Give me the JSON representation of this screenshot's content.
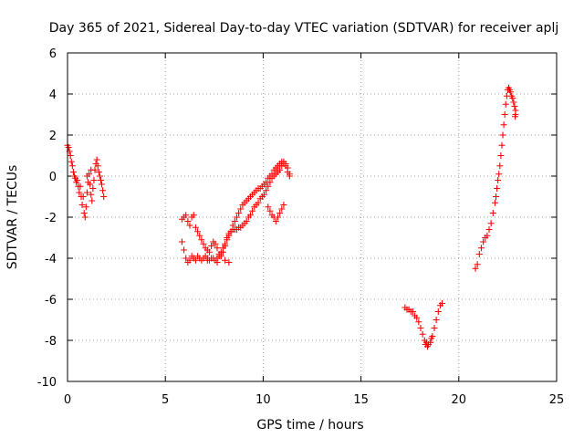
{
  "chart_data": {
    "type": "scatter",
    "title": "Day 365 of 2021, Sidereal Day-to-day VTEC variation (SDTVAR) for receiver aplj",
    "xlabel": "GPS time / hours",
    "ylabel": "SDTVAR / TECUs",
    "xlim": [
      0,
      25
    ],
    "ylim": [
      -10,
      6
    ],
    "xticks": [
      0,
      5,
      10,
      15,
      20,
      25
    ],
    "yticks": [
      -10,
      -8,
      -6,
      -4,
      -2,
      0,
      2,
      4,
      6
    ],
    "grid": true,
    "marker": "plus",
    "color": "#ff0000",
    "points": [
      [
        0.0,
        1.5
      ],
      [
        0.05,
        1.4
      ],
      [
        0.1,
        1.2
      ],
      [
        0.15,
        1.0
      ],
      [
        0.2,
        0.7
      ],
      [
        0.25,
        0.5
      ],
      [
        0.3,
        0.2
      ],
      [
        0.35,
        0.0
      ],
      [
        0.4,
        -0.1
      ],
      [
        0.45,
        -0.3
      ],
      [
        0.5,
        -0.2
      ],
      [
        0.55,
        -0.5
      ],
      [
        0.6,
        -0.8
      ],
      [
        0.65,
        -0.5
      ],
      [
        0.7,
        -1.0
      ],
      [
        0.75,
        -1.4
      ],
      [
        0.8,
        -1.0
      ],
      [
        0.85,
        -1.8
      ],
      [
        0.9,
        -2.0
      ],
      [
        0.95,
        -1.5
      ],
      [
        1.0,
        -0.8
      ],
      [
        1.05,
        -0.3
      ],
      [
        1.1,
        0.1
      ],
      [
        1.15,
        -0.4
      ],
      [
        1.2,
        -0.9
      ],
      [
        1.25,
        -1.2
      ],
      [
        1.3,
        -0.6
      ],
      [
        1.35,
        -0.2
      ],
      [
        1.4,
        0.3
      ],
      [
        1.45,
        0.6
      ],
      [
        1.5,
        0.8
      ],
      [
        1.55,
        0.5
      ],
      [
        1.6,
        0.2
      ],
      [
        1.65,
        0.0
      ],
      [
        1.7,
        -0.2
      ],
      [
        1.75,
        -0.4
      ],
      [
        1.8,
        -0.7
      ],
      [
        1.85,
        -1.0
      ],
      [
        1.2,
        0.3
      ],
      [
        1.0,
        0.0
      ],
      [
        5.85,
        -2.1
      ],
      [
        5.95,
        -2.0
      ],
      [
        6.05,
        -1.9
      ],
      [
        6.15,
        -2.2
      ],
      [
        6.25,
        -2.4
      ],
      [
        6.35,
        -2.0
      ],
      [
        6.45,
        -1.9
      ],
      [
        6.55,
        -2.5
      ],
      [
        6.65,
        -2.7
      ],
      [
        6.75,
        -2.9
      ],
      [
        6.85,
        -3.1
      ],
      [
        6.95,
        -3.3
      ],
      [
        7.05,
        -3.5
      ],
      [
        7.15,
        -3.6
      ],
      [
        7.25,
        -3.7
      ],
      [
        7.35,
        -3.4
      ],
      [
        7.45,
        -3.2
      ],
      [
        7.55,
        -3.3
      ],
      [
        7.65,
        -3.5
      ],
      [
        7.75,
        -3.8
      ],
      [
        7.85,
        -3.9
      ],
      [
        7.95,
        -3.7
      ],
      [
        8.05,
        -3.4
      ],
      [
        8.15,
        -3.0
      ],
      [
        8.25,
        -2.8
      ],
      [
        8.35,
        -2.7
      ],
      [
        8.45,
        -2.6
      ],
      [
        8.55,
        -2.6
      ],
      [
        8.65,
        -2.6
      ],
      [
        8.75,
        -2.5
      ],
      [
        8.85,
        -2.5
      ],
      [
        8.95,
        -2.4
      ],
      [
        9.05,
        -2.3
      ],
      [
        9.15,
        -2.2
      ],
      [
        9.25,
        -2.0
      ],
      [
        9.35,
        -1.9
      ],
      [
        9.45,
        -1.7
      ],
      [
        9.55,
        -1.5
      ],
      [
        9.65,
        -1.4
      ],
      [
        9.75,
        -1.3
      ],
      [
        9.85,
        -1.1
      ],
      [
        9.95,
        -1.0
      ],
      [
        10.05,
        -0.9
      ],
      [
        10.15,
        -0.7
      ],
      [
        10.25,
        -0.5
      ],
      [
        10.35,
        -0.3
      ],
      [
        10.45,
        -0.1
      ],
      [
        10.55,
        0.0
      ],
      [
        10.65,
        0.1
      ],
      [
        10.75,
        0.2
      ],
      [
        10.85,
        0.3
      ],
      [
        10.95,
        0.5
      ],
      [
        11.05,
        0.6
      ],
      [
        11.15,
        0.5
      ],
      [
        11.25,
        0.2
      ],
      [
        11.35,
        0.0
      ],
      [
        5.85,
        -3.2
      ],
      [
        5.95,
        -3.6
      ],
      [
        6.05,
        -4.0
      ],
      [
        6.15,
        -4.2
      ],
      [
        6.25,
        -4.1
      ],
      [
        6.35,
        -3.9
      ],
      [
        6.45,
        -4.0
      ],
      [
        6.55,
        -4.1
      ],
      [
        6.65,
        -3.9
      ],
      [
        6.75,
        -4.0
      ],
      [
        6.85,
        -4.1
      ],
      [
        6.95,
        -4.0
      ],
      [
        7.05,
        -3.9
      ],
      [
        7.15,
        -4.0
      ],
      [
        7.25,
        -4.1
      ],
      [
        7.35,
        -4.0
      ],
      [
        7.45,
        -4.0
      ],
      [
        7.55,
        -4.1
      ],
      [
        7.65,
        -4.0
      ],
      [
        7.75,
        -3.9
      ],
      [
        7.85,
        -3.7
      ],
      [
        7.95,
        -3.5
      ],
      [
        8.05,
        -3.3
      ],
      [
        8.15,
        -3.1
      ],
      [
        8.25,
        -2.9
      ],
      [
        8.35,
        -2.7
      ],
      [
        8.45,
        -2.4
      ],
      [
        8.55,
        -2.2
      ],
      [
        8.65,
        -2.0
      ],
      [
        8.75,
        -1.8
      ],
      [
        8.85,
        -1.6
      ],
      [
        8.95,
        -1.4
      ],
      [
        9.05,
        -1.3
      ],
      [
        9.15,
        -1.2
      ],
      [
        9.25,
        -1.1
      ],
      [
        9.35,
        -1.0
      ],
      [
        9.45,
        -0.9
      ],
      [
        9.55,
        -0.8
      ],
      [
        9.65,
        -0.7
      ],
      [
        9.75,
        -0.6
      ],
      [
        9.85,
        -0.6
      ],
      [
        9.95,
        -0.5
      ],
      [
        10.05,
        -0.4
      ],
      [
        10.15,
        -0.3
      ],
      [
        10.25,
        -0.1
      ],
      [
        10.35,
        0.0
      ],
      [
        10.45,
        0.1
      ],
      [
        10.55,
        0.3
      ],
      [
        10.65,
        0.4
      ],
      [
        10.75,
        0.5
      ],
      [
        10.85,
        0.6
      ],
      [
        10.95,
        0.7
      ],
      [
        11.05,
        0.7
      ],
      [
        11.15,
        0.6
      ],
      [
        11.25,
        0.4
      ],
      [
        11.35,
        0.1
      ],
      [
        7.15,
        -4.1
      ],
      [
        7.65,
        -4.2
      ],
      [
        8.05,
        -4.1
      ],
      [
        8.25,
        -4.2
      ],
      [
        10.25,
        -1.5
      ],
      [
        10.35,
        -1.7
      ],
      [
        10.45,
        -1.9
      ],
      [
        10.55,
        -2.0
      ],
      [
        10.65,
        -2.2
      ],
      [
        10.75,
        -2.0
      ],
      [
        10.85,
        -1.8
      ],
      [
        10.95,
        -1.6
      ],
      [
        11.05,
        -1.4
      ],
      [
        17.25,
        -6.4
      ],
      [
        17.35,
        -6.5
      ],
      [
        17.45,
        -6.5
      ],
      [
        17.55,
        -6.6
      ],
      [
        17.65,
        -6.6
      ],
      [
        17.75,
        -6.8
      ],
      [
        17.85,
        -6.9
      ],
      [
        17.95,
        -7.1
      ],
      [
        18.05,
        -7.4
      ],
      [
        18.15,
        -7.7
      ],
      [
        18.25,
        -8.0
      ],
      [
        18.35,
        -8.1
      ],
      [
        18.45,
        -8.2
      ],
      [
        18.55,
        -8.1
      ],
      [
        18.65,
        -7.8
      ],
      [
        18.75,
        -7.4
      ],
      [
        18.85,
        -7.0
      ],
      [
        18.95,
        -6.6
      ],
      [
        19.05,
        -6.3
      ],
      [
        19.15,
        -6.2
      ],
      [
        18.4,
        -8.3
      ],
      [
        18.3,
        -8.2
      ],
      [
        18.6,
        -7.9
      ],
      [
        20.85,
        -4.5
      ],
      [
        20.95,
        -4.3
      ],
      [
        21.05,
        -3.8
      ],
      [
        21.15,
        -3.5
      ],
      [
        21.25,
        -3.2
      ],
      [
        21.35,
        -3.0
      ],
      [
        21.45,
        -2.9
      ],
      [
        21.55,
        -2.6
      ],
      [
        21.65,
        -2.3
      ],
      [
        21.75,
        -1.8
      ],
      [
        21.85,
        -1.3
      ],
      [
        21.95,
        -0.6
      ],
      [
        22.05,
        0.1
      ],
      [
        22.1,
        0.5
      ],
      [
        22.15,
        1.0
      ],
      [
        22.2,
        1.5
      ],
      [
        22.25,
        2.0
      ],
      [
        22.3,
        2.5
      ],
      [
        22.35,
        3.0
      ],
      [
        22.4,
        3.5
      ],
      [
        22.45,
        3.9
      ],
      [
        22.5,
        4.2
      ],
      [
        22.55,
        4.3
      ],
      [
        22.6,
        4.2
      ],
      [
        22.65,
        4.1
      ],
      [
        22.7,
        3.9
      ],
      [
        22.75,
        3.8
      ],
      [
        22.8,
        3.6
      ],
      [
        22.85,
        3.4
      ],
      [
        22.9,
        3.2
      ],
      [
        22.9,
        3.0
      ],
      [
        22.88,
        2.9
      ],
      [
        21.9,
        -1.0
      ],
      [
        22.0,
        -0.2
      ]
    ]
  }
}
